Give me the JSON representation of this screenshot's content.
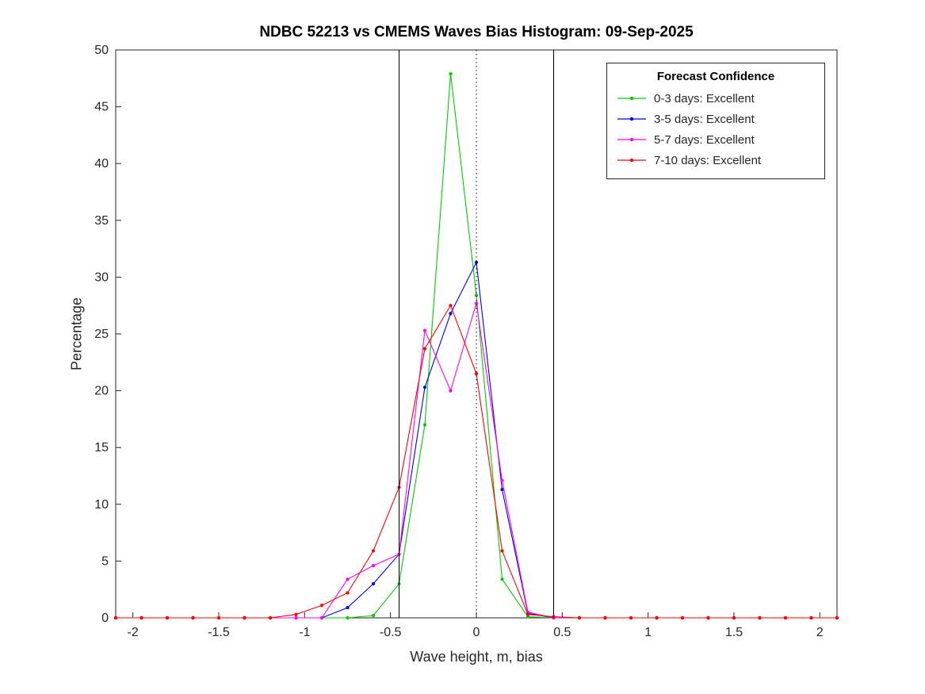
{
  "chart_data": {
    "type": "line",
    "title": "NDBC 52213 vs CMEMS Waves Bias Histogram: 09-Sep-2025",
    "xlabel": "Wave height, m, bias",
    "ylabel": "Percentage",
    "xlim": [
      -2.1,
      2.1
    ],
    "ylim": [
      0,
      50
    ],
    "xticks": [
      -2,
      -1.5,
      -1,
      -0.5,
      0,
      0.5,
      1,
      1.5,
      2
    ],
    "yticks": [
      0,
      5,
      10,
      15,
      20,
      25,
      30,
      35,
      40,
      45,
      50
    ],
    "grid": false,
    "x": [
      -2.1,
      -1.95,
      -1.8,
      -1.65,
      -1.5,
      -1.35,
      -1.2,
      -1.05,
      -0.9,
      -0.75,
      -0.6,
      -0.45,
      -0.3,
      -0.15,
      0,
      0.15,
      0.3,
      0.45,
      0.6,
      0.75,
      0.9,
      1.05,
      1.2,
      1.35,
      1.5,
      1.65,
      1.8,
      1.95,
      2.1
    ],
    "series": [
      {
        "name": "0-3 days: Excellent",
        "color": "#00cc00",
        "values": [
          0,
          0,
          0,
          0,
          0,
          0,
          0,
          0,
          0,
          0,
          0.2,
          3.0,
          17.0,
          47.9,
          28.4,
          3.4,
          0.1,
          0,
          0,
          0,
          0,
          0,
          0,
          0,
          0,
          0,
          0,
          0,
          0
        ]
      },
      {
        "name": "3-5 days: Excellent",
        "color": "#0000ee",
        "values": [
          0,
          0,
          0,
          0,
          0,
          0,
          0,
          0,
          0,
          0.9,
          3.0,
          5.6,
          20.3,
          26.8,
          31.3,
          11.3,
          0.4,
          0,
          0,
          0,
          0,
          0,
          0,
          0,
          0,
          0,
          0,
          0,
          0
        ]
      },
      {
        "name": "5-7 days: Excellent",
        "color": "#ff00ff",
        "values": [
          0,
          0,
          0,
          0,
          0,
          0,
          0,
          0,
          0,
          3.4,
          4.6,
          5.6,
          25.3,
          20.0,
          27.7,
          12.1,
          0.5,
          0,
          0,
          0,
          0,
          0,
          0,
          0,
          0,
          0,
          0,
          0,
          0
        ]
      },
      {
        "name": "7-10 days: Excellent",
        "color": "#ff0000",
        "values": [
          0,
          0,
          0,
          0,
          0,
          0,
          0,
          0.3,
          1.1,
          2.2,
          5.9,
          11.5,
          23.7,
          27.5,
          21.5,
          5.9,
          0.3,
          0.1,
          0,
          0,
          0,
          0,
          0,
          0,
          0,
          0,
          0,
          0,
          0
        ]
      }
    ],
    "vlines": [
      {
        "x": -0.45,
        "style": "solid",
        "color": "#000000"
      },
      {
        "x": 0,
        "style": "dotted",
        "color": "#000000"
      },
      {
        "x": 0.45,
        "style": "solid",
        "color": "#000000"
      }
    ],
    "legend": {
      "title": "Forecast Confidence",
      "position": "top-right"
    }
  }
}
